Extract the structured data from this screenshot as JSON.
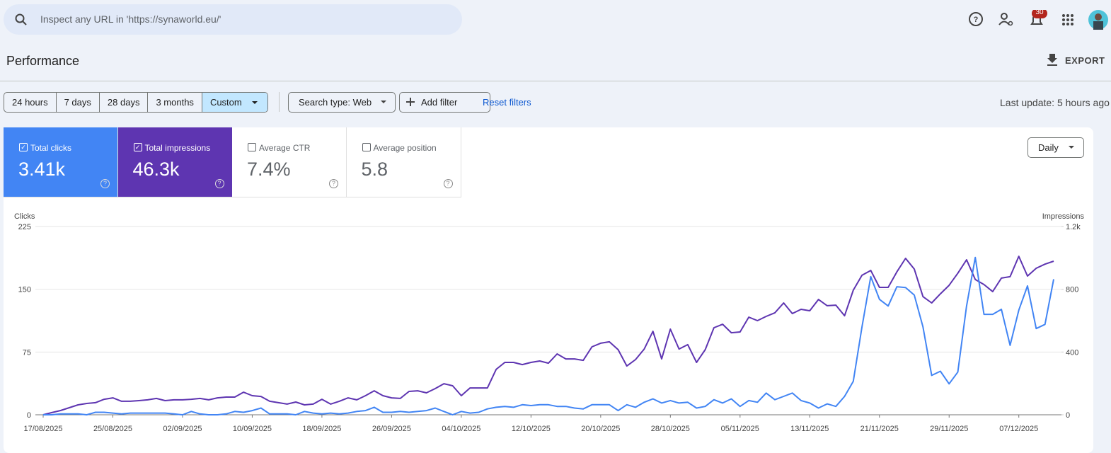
{
  "search_placeholder": "Inspect any URL in 'https://synaworld.eu/'",
  "notification_count": "30",
  "title": "Performance",
  "export": "EXPORT",
  "date_ranges": [
    {
      "label": "24 hours",
      "selected": false
    },
    {
      "label": "7 days",
      "selected": false
    },
    {
      "label": "28 days",
      "selected": false
    },
    {
      "label": "3 months",
      "selected": false
    },
    {
      "label": "Custom",
      "selected": true
    }
  ],
  "search_type": "Search type: Web",
  "add_filter": "Add filter",
  "reset_filters": "Reset filters",
  "last_update": "Last update: 5 hours ago",
  "metrics": [
    {
      "label": "Total clicks",
      "value": "3.41k",
      "checked": true,
      "color": "#4285f4"
    },
    {
      "label": "Total impressions",
      "value": "46.3k",
      "checked": true,
      "color": "#5e35b1"
    },
    {
      "label": "Average CTR",
      "value": "7.4%",
      "checked": false,
      "color": "#ffffff"
    },
    {
      "label": "Average position",
      "value": "5.8",
      "checked": false,
      "color": "#ffffff"
    }
  ],
  "granularity": "Daily",
  "chart_data": {
    "type": "line",
    "y_label": "Clicks",
    "y2_label": "Impressions",
    "categories": [
      "17/08/2025",
      null,
      null,
      null,
      null,
      null,
      null,
      null,
      "25/08/2025",
      null,
      null,
      null,
      null,
      null,
      null,
      null,
      "02/09/2025",
      null,
      null,
      null,
      null,
      null,
      null,
      null,
      "10/09/2025",
      null,
      null,
      null,
      null,
      null,
      null,
      null,
      "18/09/2025",
      null,
      null,
      null,
      null,
      null,
      null,
      null,
      "26/09/2025",
      null,
      null,
      null,
      null,
      null,
      null,
      null,
      "04/10/2025",
      null,
      null,
      null,
      null,
      null,
      null,
      null,
      "12/10/2025",
      null,
      null,
      null,
      null,
      null,
      null,
      null,
      "20/10/2025",
      null,
      null,
      null,
      null,
      null,
      null,
      null,
      "28/10/2025",
      null,
      null,
      null,
      null,
      null,
      null,
      null,
      "05/11/2025",
      null,
      null,
      null,
      null,
      null,
      null,
      null,
      "13/11/2025",
      null,
      null,
      null,
      null,
      null,
      null,
      null,
      "21/11/2025",
      null,
      null,
      null,
      null,
      null,
      null,
      null,
      "29/11/2025",
      null,
      null,
      null,
      null,
      null,
      null,
      null,
      "07/12/2025",
      null,
      null,
      null,
      null
    ],
    "ylim": [
      0,
      225
    ],
    "yticks": [
      0,
      75,
      150,
      225
    ],
    "y2lim": [
      0,
      1200
    ],
    "y2ticks": [
      0,
      400,
      800,
      {
        "value": 1200,
        "label": "1.2k"
      }
    ],
    "grid": true,
    "series": [
      {
        "name": "Clicks",
        "color": "#4285f4",
        "values": [
          0,
          0,
          1,
          1,
          1,
          0,
          3,
          3,
          2,
          1,
          2,
          2,
          2,
          2,
          2,
          1,
          0,
          4,
          1,
          0,
          0,
          1,
          4,
          3,
          5,
          8,
          1,
          1,
          1,
          0,
          4,
          2,
          1,
          2,
          1,
          2,
          4,
          5,
          9,
          3,
          3,
          4,
          3,
          4,
          5,
          8,
          4,
          0,
          4,
          2,
          3,
          7,
          9,
          10,
          9,
          12,
          11,
          12,
          12,
          10,
          10,
          8,
          7,
          12,
          12,
          12,
          5,
          12,
          9,
          15,
          19,
          14,
          17,
          14,
          15,
          8,
          10,
          18,
          14,
          19,
          10,
          17,
          15,
          26,
          18,
          22,
          26,
          17,
          14,
          8,
          13,
          10,
          22,
          40,
          105,
          165,
          138,
          130,
          153,
          152,
          143,
          105,
          47,
          52,
          37,
          51,
          130,
          188,
          120,
          120,
          126,
          83,
          125,
          154,
          103,
          108,
          162
        ]
      },
      {
        "name": "Impressions",
        "color": "#5e35b1",
        "axis": "y2",
        "values": [
          0,
          14,
          27,
          45,
          63,
          72,
          77,
          99,
          108,
          86,
          86,
          90,
          95,
          104,
          90,
          95,
          95,
          99,
          104,
          95,
          108,
          113,
          113,
          144,
          122,
          117,
          86,
          77,
          68,
          81,
          63,
          68,
          99,
          68,
          86,
          108,
          95,
          122,
          153,
          122,
          108,
          104,
          149,
          153,
          140,
          167,
          198,
          185,
          122,
          171,
          171,
          171,
          289,
          334,
          334,
          320,
          334,
          343,
          329,
          388,
          356,
          356,
          347,
          433,
          456,
          465,
          415,
          311,
          352,
          419,
          532,
          356,
          546,
          419,
          447,
          334,
          415,
          555,
          577,
          523,
          528,
          622,
          600,
          627,
          650,
          713,
          645,
          672,
          663,
          735,
          695,
          699,
          631,
          794,
          889,
          920,
          812,
          812,
          911,
          997,
          929,
          753,
          713,
          771,
          825,
          902,
          988,
          862,
          830,
          785,
          871,
          880,
          1010,
          884,
          934,
          960,
          979
        ]
      }
    ]
  }
}
